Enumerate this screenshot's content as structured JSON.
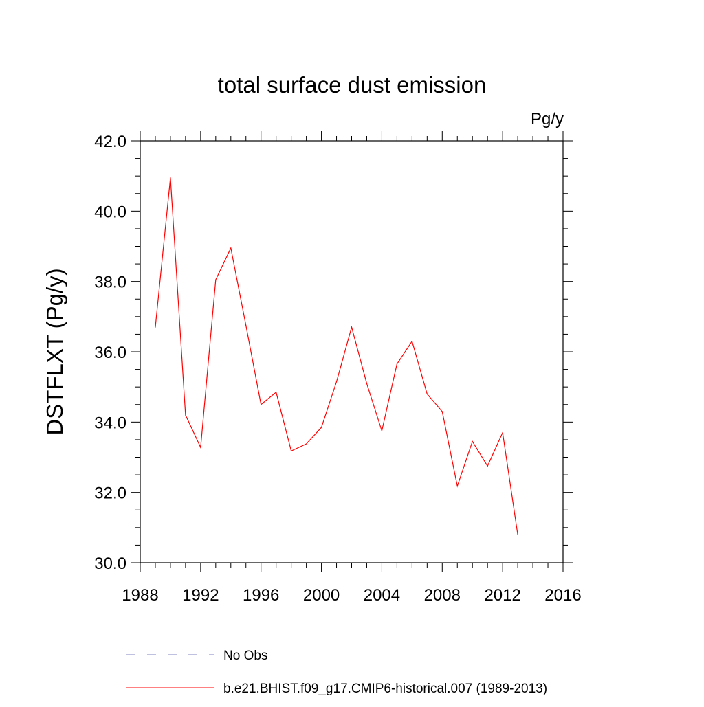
{
  "chart_data": {
    "type": "line",
    "title": "total surface dust emission",
    "units_label": "Pg/y",
    "ylabel": "DSTFLXT  (Pg/y)",
    "xlabel": "",
    "xlim": [
      1988,
      2016
    ],
    "ylim": [
      30.0,
      42.0
    ],
    "x_ticks": [
      1988,
      1992,
      1996,
      2000,
      2004,
      2008,
      2012,
      2016
    ],
    "x_tick_labels": [
      "1988",
      "1992",
      "1996",
      "2000",
      "2004",
      "2008",
      "2012",
      "2016"
    ],
    "y_ticks": [
      30.0,
      32.0,
      34.0,
      36.0,
      38.0,
      40.0,
      42.0
    ],
    "y_tick_labels": [
      "30.0",
      "32.0",
      "34.0",
      "36.0",
      "38.0",
      "40.0",
      "42.0"
    ],
    "x_minor_step": 1,
    "y_minor_step": 0.5,
    "grid": false,
    "series": [
      {
        "name": "b.e21.BHIST.f09_g17.CMIP6-historical.007 (1989-2013)",
        "color": "#ff0000",
        "dash": "solid",
        "x": [
          1989,
          1990,
          1991,
          1992,
          1993,
          1994,
          1995,
          1996,
          1997,
          1998,
          1999,
          2000,
          2001,
          2002,
          2003,
          2004,
          2005,
          2006,
          2007,
          2008,
          2009,
          2010,
          2011,
          2012,
          2013
        ],
        "y": [
          36.7,
          40.95,
          34.2,
          33.28,
          38.05,
          38.95,
          36.75,
          34.5,
          34.85,
          33.18,
          33.38,
          33.85,
          35.15,
          36.7,
          35.1,
          33.75,
          35.65,
          36.3,
          34.8,
          34.3,
          32.18,
          33.45,
          32.75,
          33.7,
          30.8
        ]
      }
    ],
    "legend": [
      {
        "label": "No Obs",
        "color": "#8080c0",
        "dash": "dashed"
      },
      {
        "label": "b.e21.BHIST.f09_g17.CMIP6-historical.007 (1989-2013)",
        "color": "#ff0000",
        "dash": "solid"
      }
    ],
    "legend_placement": "bottom"
  }
}
